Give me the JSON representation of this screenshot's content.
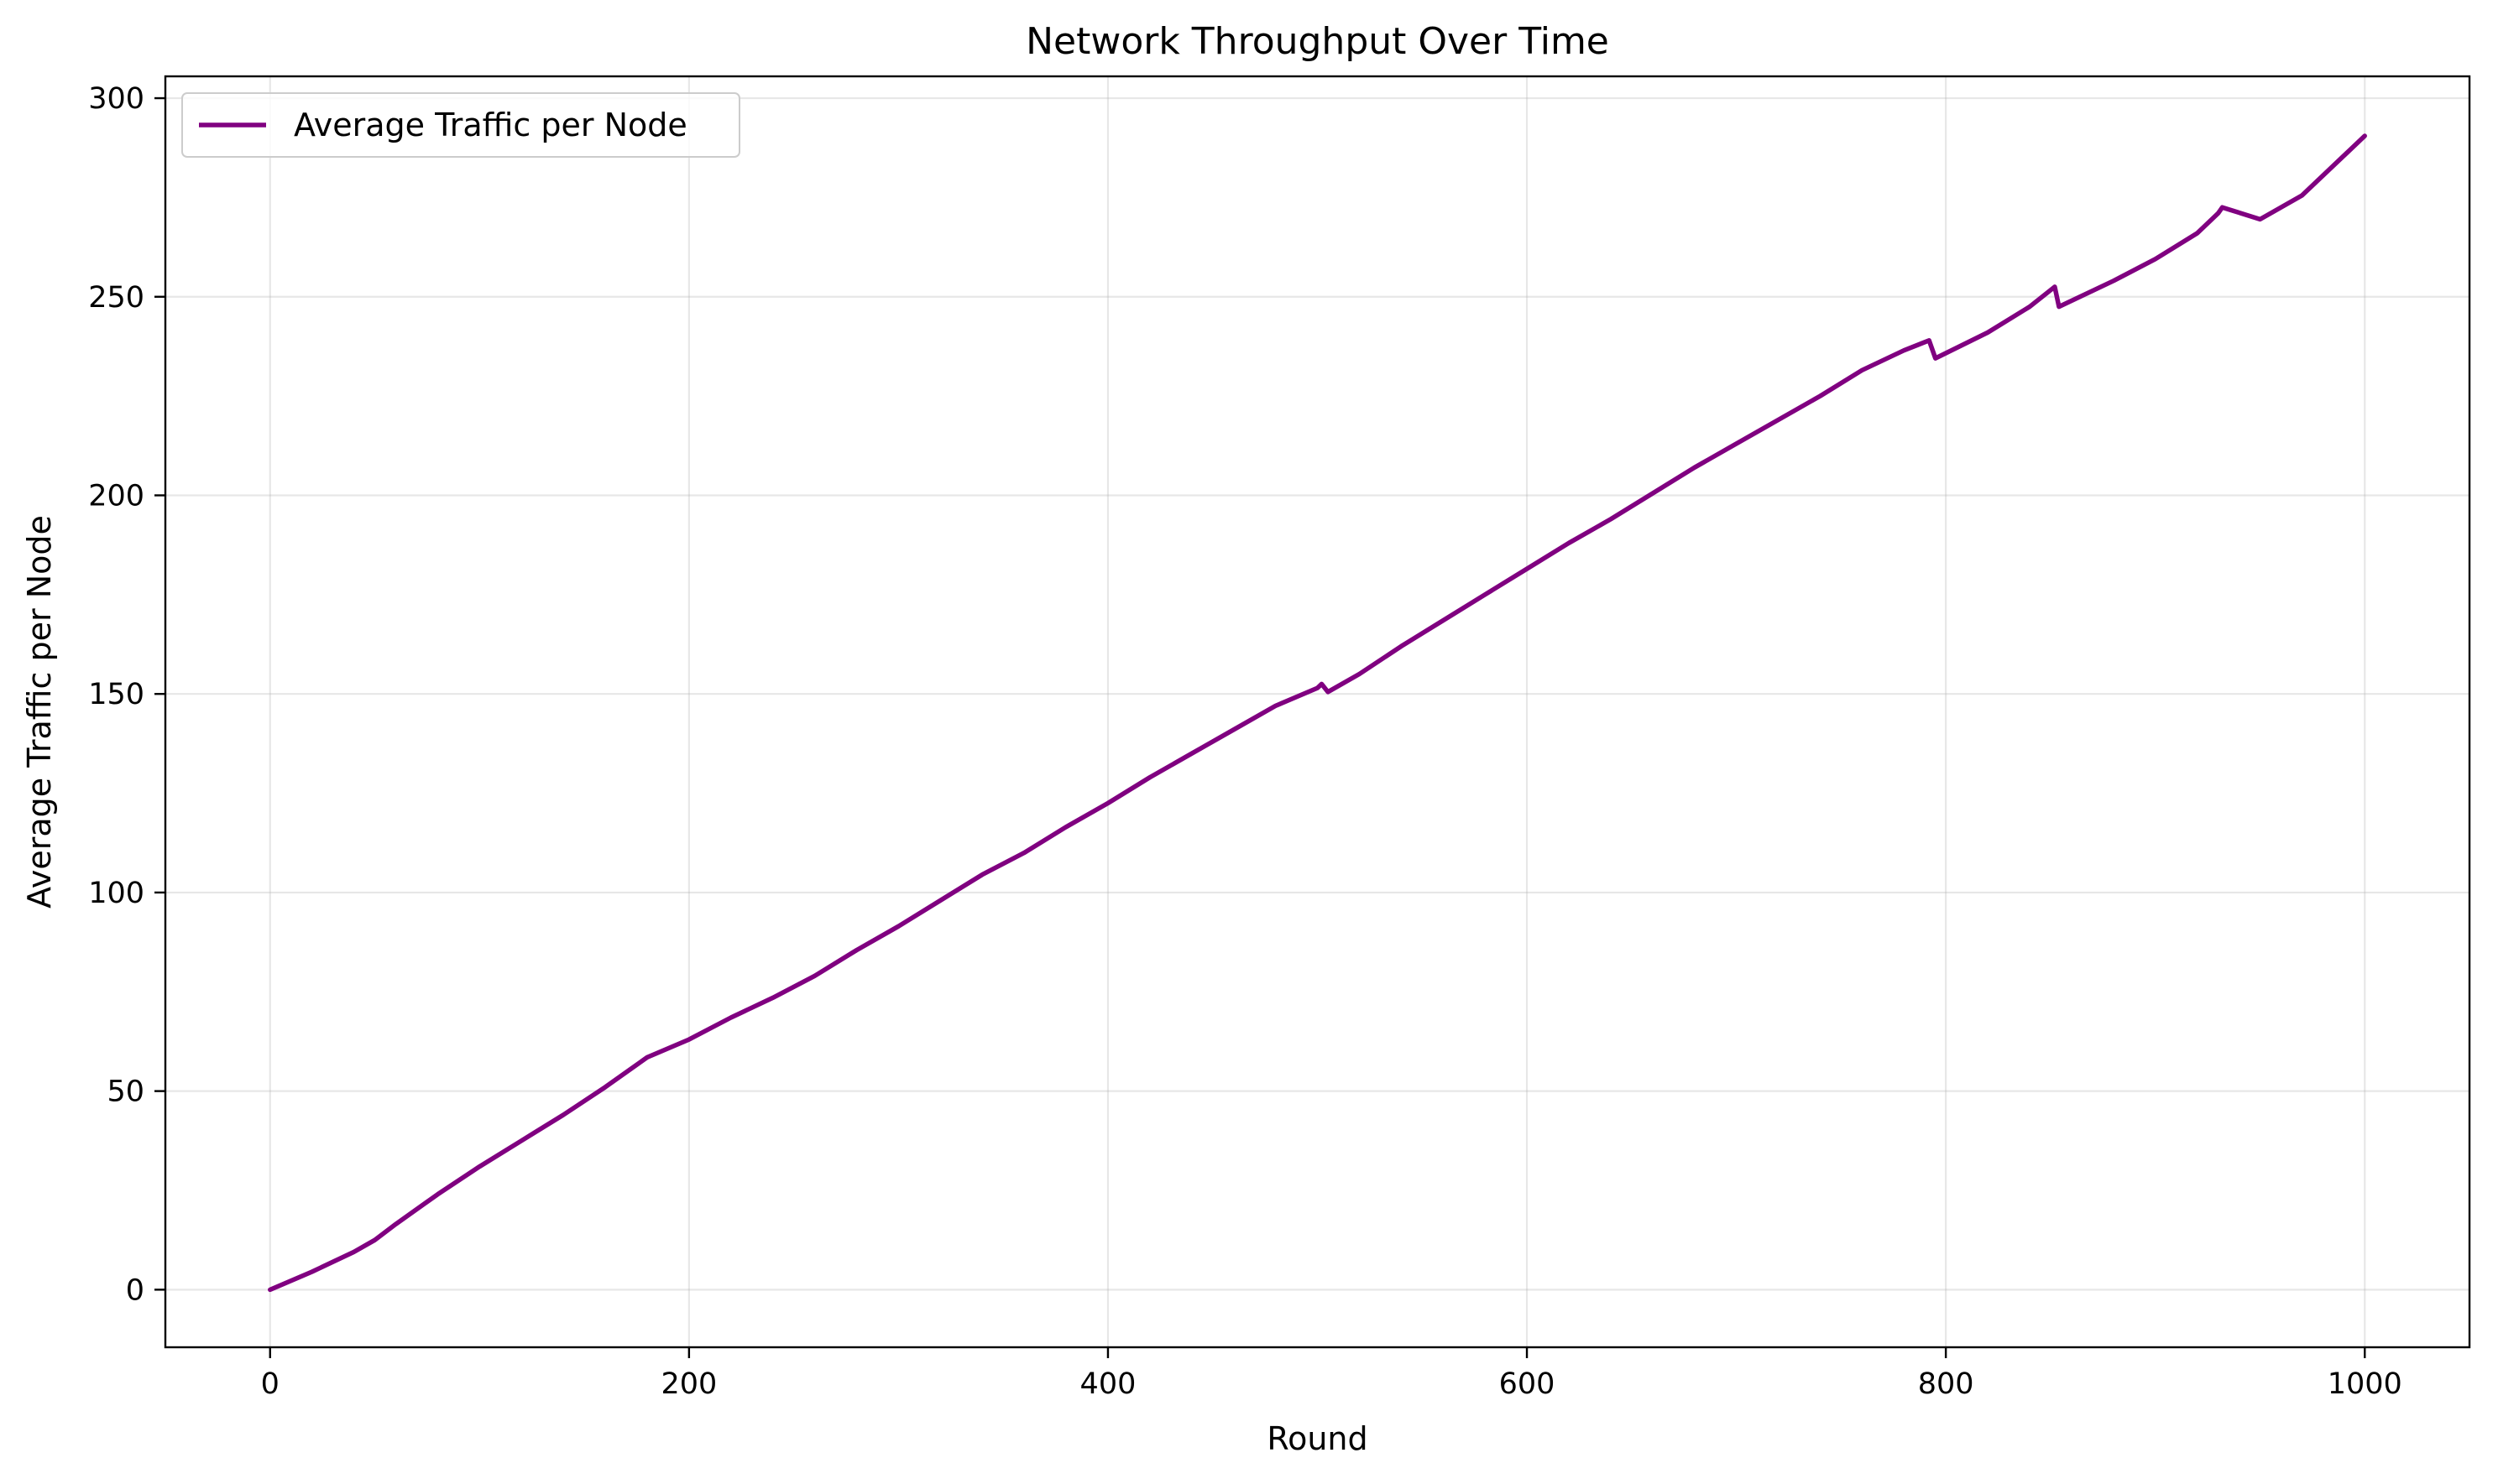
{
  "chart_data": {
    "type": "line",
    "title": "Network Throughput Over Time",
    "xlabel": "Round",
    "ylabel": "Average Traffic per Node",
    "xlim": [
      -50,
      1050
    ],
    "ylim": [
      -14.5,
      305.5
    ],
    "xticks": [
      0,
      200,
      400,
      600,
      800,
      1000
    ],
    "yticks": [
      0,
      50,
      100,
      150,
      200,
      250,
      300
    ],
    "xtick_labels": [
      "0",
      "200",
      "400",
      "600",
      "800",
      "1000"
    ],
    "ytick_labels": [
      "0",
      "50",
      "100",
      "150",
      "200",
      "250",
      "300"
    ],
    "grid": true,
    "legend_position": "upper-left",
    "series": [
      {
        "name": "Average Traffic per Node",
        "color": "#800080",
        "x": [
          0,
          20,
          40,
          50,
          60,
          80,
          100,
          120,
          140,
          160,
          180,
          200,
          220,
          240,
          260,
          280,
          300,
          320,
          340,
          360,
          380,
          400,
          420,
          440,
          460,
          480,
          500,
          502,
          505,
          520,
          540,
          560,
          580,
          600,
          620,
          640,
          660,
          680,
          700,
          720,
          740,
          760,
          780,
          792,
          795,
          820,
          840,
          852,
          854,
          880,
          900,
          920,
          930,
          932,
          950,
          970,
          1000
        ],
        "y": [
          0,
          4.5,
          9.5,
          12.5,
          16.5,
          24,
          31,
          37.5,
          44,
          51,
          58.5,
          63,
          68.5,
          73.5,
          79,
          85.5,
          91.5,
          98,
          104.5,
          110,
          116.5,
          122.5,
          129,
          135,
          141,
          147,
          151.5,
          152.5,
          150.5,
          155,
          162,
          168.5,
          175,
          181.5,
          188,
          194,
          200.5,
          207,
          213,
          219,
          225,
          231.5,
          236.5,
          239,
          234.5,
          241,
          247.5,
          252.5,
          247.5,
          254,
          259.5,
          266,
          271,
          272.5,
          269.5,
          275.5,
          290.5
        ]
      }
    ]
  }
}
